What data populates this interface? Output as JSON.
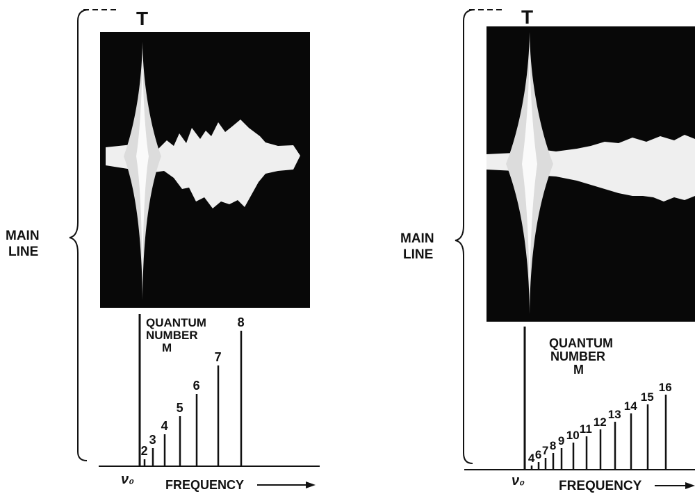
{
  "panels": [
    {
      "main_line_label": [
        "MAIN",
        "LINE"
      ],
      "marker_label": "T",
      "quantum_label": [
        "QUANTUM",
        "NUMBER",
        "M"
      ],
      "x_axis_label": "FREQUENCY",
      "origin_label": "ν₀",
      "lines": [
        {
          "m": "2",
          "height": 10
        },
        {
          "m": "3",
          "height": 26
        },
        {
          "m": "4",
          "height": 46
        },
        {
          "m": "5",
          "height": 72
        },
        {
          "m": "6",
          "height": 104
        },
        {
          "m": "7",
          "height": 145
        },
        {
          "m": "8",
          "height": 195
        }
      ]
    },
    {
      "main_line_label": [
        "MAIN",
        "LINE"
      ],
      "marker_label": "T",
      "quantum_label": [
        "QUANTUM",
        "NUMBER",
        "M"
      ],
      "x_axis_label": "FREQUENCY",
      "origin_label": "ν₀",
      "lines": [
        {
          "m": "4",
          "height": 6
        },
        {
          "m": "6",
          "height": 11
        },
        {
          "m": "7",
          "height": 17
        },
        {
          "m": "8",
          "height": 24
        },
        {
          "m": "9",
          "height": 31
        },
        {
          "m": "10",
          "height": 39
        },
        {
          "m": "11",
          "height": 48
        },
        {
          "m": "12",
          "height": 58
        },
        {
          "m": "13",
          "height": 69
        },
        {
          "m": "14",
          "height": 81
        },
        {
          "m": "15",
          "height": 94
        },
        {
          "m": "16",
          "height": 108
        }
      ]
    }
  ]
}
